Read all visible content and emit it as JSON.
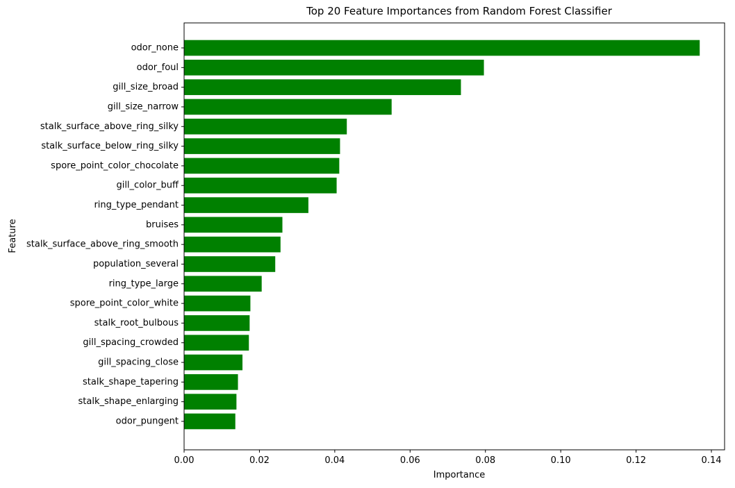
{
  "chart_data": {
    "type": "bar",
    "orientation": "horizontal",
    "title": "Top 20 Feature Importances from Random Forest Classifier",
    "xlabel": "Importance",
    "ylabel": "Feature",
    "xlim": [
      0,
      0.1435
    ],
    "xticks": [
      "0.00",
      "0.02",
      "0.04",
      "0.06",
      "0.08",
      "0.10",
      "0.12",
      "0.14"
    ],
    "grid": false,
    "legend": "none",
    "bar_color": "#008000",
    "categories": [
      "odor_none",
      "odor_foul",
      "gill_size_broad",
      "gill_size_narrow",
      "stalk_surface_above_ring_silky",
      "stalk_surface_below_ring_silky",
      "spore_point_color_chocolate",
      "gill_color_buff",
      "ring_type_pendant",
      "bruises",
      "stalk_surface_above_ring_smooth",
      "population_several",
      "ring_type_large",
      "spore_point_color_white",
      "stalk_root_bulbous",
      "gill_spacing_crowded",
      "gill_spacing_close",
      "stalk_shape_tapering",
      "stalk_shape_enlarging",
      "odor_pungent"
    ],
    "values": [
      0.1369,
      0.0796,
      0.0735,
      0.0551,
      0.0432,
      0.0414,
      0.0412,
      0.0405,
      0.033,
      0.0261,
      0.0256,
      0.0242,
      0.0206,
      0.0176,
      0.0174,
      0.0172,
      0.0155,
      0.0143,
      0.0139,
      0.0136
    ]
  }
}
